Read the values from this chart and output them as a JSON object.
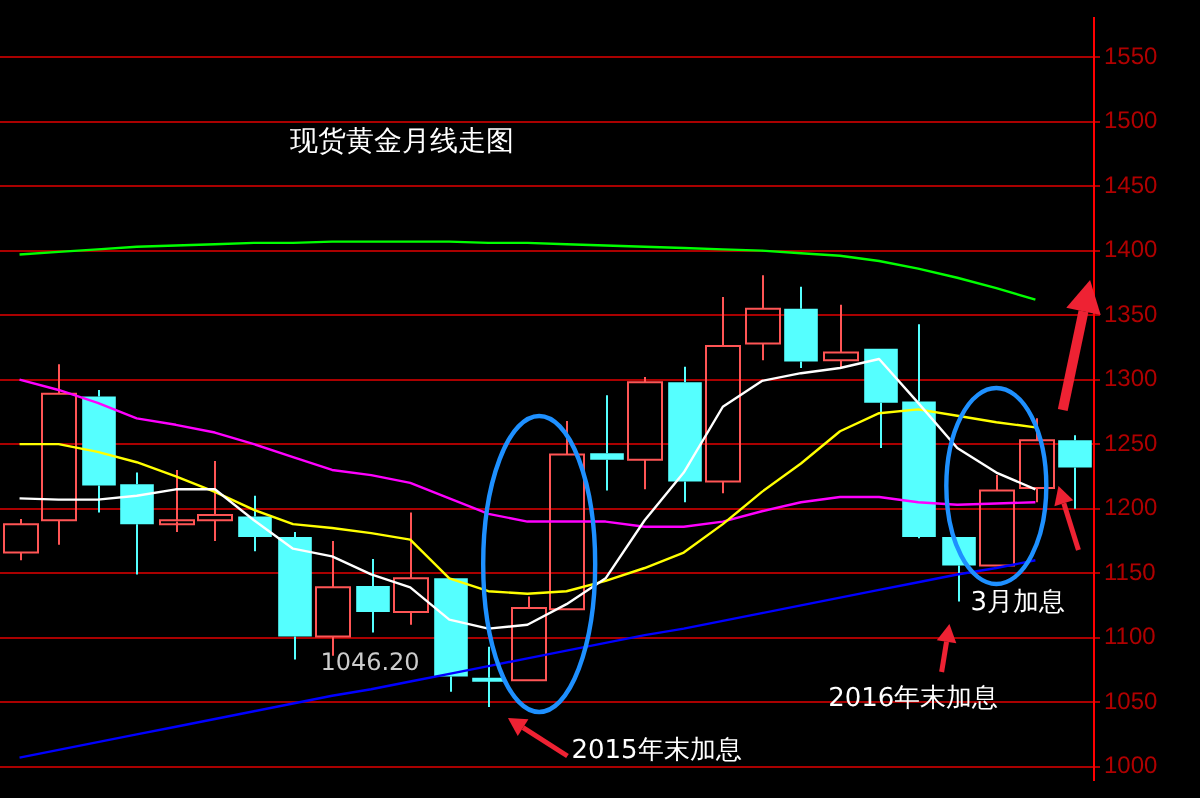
{
  "chart_data": {
    "type": "candlestick",
    "title": "现货黄金月线走图",
    "categories": [
      null,
      null,
      null,
      null,
      null,
      null,
      null,
      null,
      null,
      null,
      null,
      null,
      null,
      null,
      null,
      null,
      null,
      null,
      null,
      null,
      null,
      null,
      null,
      null,
      null,
      null,
      null,
      null
    ],
    "ohlc": [
      [
        1166,
        1192,
        1160,
        1188
      ],
      [
        1191,
        1312,
        1172,
        1289
      ],
      [
        1287,
        1292,
        1197,
        1218
      ],
      [
        1219,
        1228,
        1149,
        1188
      ],
      [
        1190,
        1230,
        1182,
        1191
      ],
      [
        1191,
        1237,
        1175,
        1195
      ],
      [
        1194,
        1210,
        1167,
        1178
      ],
      [
        1178,
        1182,
        1083,
        1101
      ],
      [
        1101,
        1175,
        1086,
        1139
      ],
      [
        1140,
        1161,
        1104,
        1120
      ],
      [
        1120,
        1197,
        1110,
        1146
      ],
      [
        1146,
        1146,
        1058,
        1070
      ],
      [
        1069,
        1093,
        1046.2,
        1068
      ],
      [
        1067,
        1132,
        1067,
        1123
      ],
      [
        1122,
        1268,
        1122,
        1242
      ],
      [
        1243,
        1288,
        1214,
        1238
      ],
      [
        1238,
        1302,
        1215,
        1298
      ],
      [
        1298,
        1310,
        1205,
        1221
      ],
      [
        1221,
        1364,
        1212,
        1326
      ],
      [
        1328,
        1381,
        1315,
        1355
      ],
      [
        1355,
        1372,
        1309,
        1314
      ],
      [
        1315,
        1358,
        1309,
        1321
      ],
      [
        1324,
        1324,
        1247,
        1282
      ],
      [
        1283,
        1343,
        1177,
        1178
      ],
      [
        1178,
        1178,
        1128,
        1156
      ],
      [
        1156,
        1226,
        1156,
        1214
      ],
      [
        1216,
        1270,
        1205,
        1253
      ],
      [
        1253,
        1257,
        1200,
        1232
      ]
    ],
    "colors": [
      "#ff5555",
      "#ff5555",
      "#55ffff",
      "#55ffff",
      "#ff5555",
      "#ff5555",
      "#55ffff",
      "#55ffff",
      "#ff5555",
      "#55ffff",
      "#ff5555",
      "#55ffff",
      "#55ffff",
      "#ff5555",
      "#ff5555",
      "#55ffff",
      "#ff5555",
      "#55ffff",
      "#ff5555",
      "#ff5555",
      "#55ffff",
      "#ff5555",
      "#55ffff",
      "#55ffff",
      "#55ffff",
      "#ff5555",
      "#ff5555",
      "#55ffff"
    ],
    "series": [
      {
        "type": "line",
        "color": "#ffffff",
        "values": [
          1208,
          1207,
          1207,
          1210,
          1215,
          1215,
          1191,
          1169,
          1163,
          1149,
          1139,
          1114,
          1107,
          1110,
          1126,
          1146,
          1191,
          1228,
          1279,
          1299,
          1305,
          1309,
          1316,
          1282,
          1247,
          1228,
          1215,
          null
        ]
      },
      {
        "type": "line",
        "color": "#ffff00",
        "values": [
          1250,
          1250,
          1244,
          1236,
          1225,
          1213,
          1199,
          1188,
          1185,
          1181,
          1176,
          1146,
          1136,
          1134,
          1136,
          1144,
          1154,
          1166,
          1188,
          1213,
          1235,
          1260,
          1274,
          1277,
          1272,
          1267,
          1263,
          null
        ]
      },
      {
        "type": "line",
        "color": "#ff00ff",
        "values": [
          1300,
          1292,
          1282,
          1270,
          1265,
          1259,
          1250,
          1240,
          1230,
          1226,
          1220,
          1208,
          1196,
          1190,
          1190,
          1190,
          1186,
          1186,
          1190,
          1198,
          1205,
          1209,
          1209,
          1205,
          1203,
          1204,
          1205,
          null
        ]
      },
      {
        "type": "line",
        "color": "#0000ff",
        "values": [
          1007,
          1013,
          1019,
          1025,
          1031,
          1037,
          1043,
          1049,
          1055,
          1060,
          1066,
          1072,
          1078,
          1084,
          1090,
          1096,
          1102,
          1107,
          1113,
          1119,
          1125,
          1131,
          1137,
          1143,
          1149,
          1154,
          1160,
          null
        ]
      },
      {
        "type": "line",
        "color": "#00ff00",
        "values": [
          1397,
          1399,
          1401,
          1403,
          1404,
          1405,
          1406,
          1406,
          1407,
          1407,
          1407,
          1407,
          1406,
          1406,
          1405,
          1404,
          1403,
          1402,
          1401,
          1400,
          1398,
          1396,
          1392,
          1386,
          1379,
          1371,
          1362,
          null
        ]
      }
    ],
    "ylim": [
      990,
      1580
    ],
    "yticks": [
      1000,
      1050,
      1100,
      1150,
      1200,
      1250,
      1300,
      1350,
      1400,
      1450,
      1500,
      1550
    ],
    "grid": "y",
    "tick_labels": "y",
    "legend": false,
    "annotations": [
      "2015年末加息",
      "2016年末加息",
      "3月加息",
      "1046.20"
    ]
  }
}
